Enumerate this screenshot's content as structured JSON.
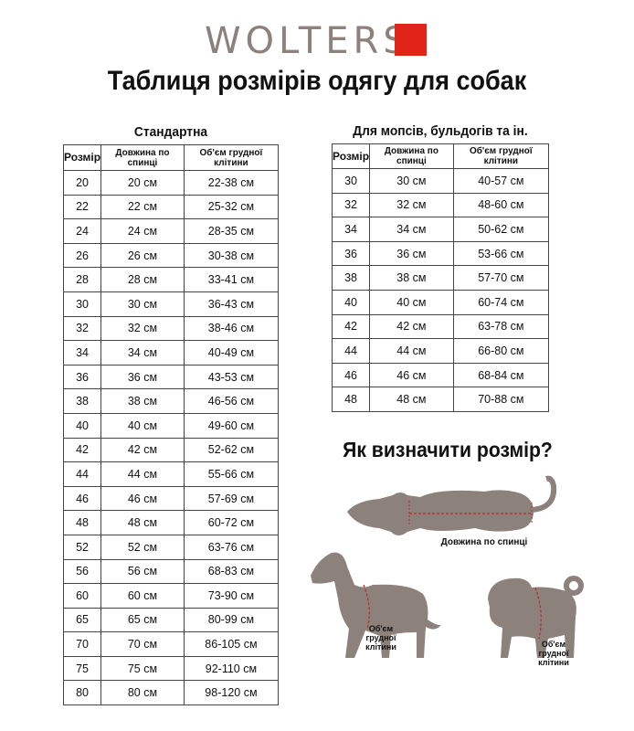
{
  "brand": {
    "name": "WOLTERS",
    "accent": "#e2231a",
    "logo_color": "#8c817b"
  },
  "title": "Таблиця розмірів одягу для собак",
  "standard": {
    "caption": "Стандартна",
    "headers": [
      "Розмір",
      "Довжина по спинці",
      "Об'єм грудної клітини"
    ],
    "rows": [
      [
        "20",
        "20 см",
        "22-38 см"
      ],
      [
        "22",
        "22 см",
        "25-32 см"
      ],
      [
        "24",
        "24 см",
        "28-35 см"
      ],
      [
        "26",
        "26 см",
        "30-38 см"
      ],
      [
        "28",
        "28 см",
        "33-41 см"
      ],
      [
        "30",
        "30 см",
        "36-43 см"
      ],
      [
        "32",
        "32 см",
        "38-46 см"
      ],
      [
        "34",
        "34 см",
        "40-49 см"
      ],
      [
        "36",
        "36 см",
        "43-53 см"
      ],
      [
        "38",
        "38 см",
        "46-56 см"
      ],
      [
        "40",
        "40 см",
        "49-60 см"
      ],
      [
        "42",
        "42 см",
        "52-62 см"
      ],
      [
        "44",
        "44 см",
        "55-66 см"
      ],
      [
        "46",
        "46 см",
        "57-69 см"
      ],
      [
        "48",
        "48 см",
        "60-72 см"
      ],
      [
        "52",
        "52 см",
        "63-76 см"
      ],
      [
        "56",
        "56 см",
        "68-83 см"
      ],
      [
        "60",
        "60 см",
        "73-90 см"
      ],
      [
        "65",
        "65 см",
        "80-99 см"
      ],
      [
        "70",
        "70 см",
        "86-105 см"
      ],
      [
        "75",
        "75 см",
        "92-110 см"
      ],
      [
        "80",
        "80 см",
        "98-120 см"
      ]
    ]
  },
  "pugs": {
    "caption": "Для мопсів, бульдогів та ін.",
    "headers": [
      "Розмір",
      "Довжина по спинці",
      "Об'єм грудної клітини"
    ],
    "rows": [
      [
        "30",
        "30 см",
        "40-57 см"
      ],
      [
        "32",
        "32 см",
        "48-60 см"
      ],
      [
        "34",
        "34 см",
        "50-62 см"
      ],
      [
        "36",
        "36 см",
        "53-66 см"
      ],
      [
        "38",
        "38 см",
        "57-70 см"
      ],
      [
        "40",
        "40 см",
        "60-74 см"
      ],
      [
        "42",
        "42 см",
        "63-78 см"
      ],
      [
        "44",
        "44 см",
        "66-80 см"
      ],
      [
        "46",
        "46 см",
        "68-84 см"
      ],
      [
        "48",
        "48 см",
        "70-88 см"
      ]
    ]
  },
  "how": {
    "title": "Як визначити розмір?",
    "back_label": "Довжина по спинці",
    "chest_label_1": "Об'єм грудної клітини",
    "chest_label_2": "Об'єм грудної клітини",
    "silhouette_color": "#8c817b",
    "measure_color": "#c0282d"
  }
}
